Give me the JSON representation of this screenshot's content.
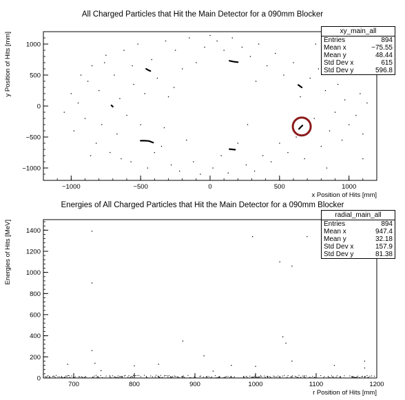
{
  "chart_data": [
    {
      "type": "scatter",
      "title": "All Charged Particles that Hit the Main Detector for a 090mm Blocker",
      "xlabel": "x Position of Hits [mm]",
      "ylabel": "y Position of Hits [mm]",
      "xlim": [
        -1200,
        1200
      ],
      "ylim": [
        -1200,
        1200
      ],
      "x_ticks": [
        -1000,
        -500,
        0,
        500,
        1000
      ],
      "y_ticks": [
        -1000,
        -500,
        0,
        500,
        1000
      ],
      "stats": {
        "name": "xy_main_all",
        "rows": [
          {
            "label": "Entries",
            "value": "894"
          },
          {
            "label": "Mean x",
            "value": "−75.55"
          },
          {
            "label": "Mean y",
            "value": "48.44"
          },
          {
            "label": "Std Dev x",
            "value": "615"
          },
          {
            "label": "Std Dev y",
            "value": "596.8"
          }
        ]
      },
      "clusters": [
        {
          "x": [
            -460,
            -450,
            -440,
            -430
          ],
          "y": [
            600,
            585,
            575,
            565
          ]
        },
        {
          "x": [
            140,
            160,
            180,
            200
          ],
          "y": [
            730,
            720,
            712,
            708
          ]
        },
        {
          "x": [
            635,
            648,
            660
          ],
          "y": [
            340,
            320,
            300
          ]
        },
        {
          "x": [
            -710,
            -705,
            -700
          ],
          "y": [
            10,
            0,
            -10
          ]
        },
        {
          "x": [
            -500,
            -470,
            -440,
            -410
          ],
          "y": [
            -560,
            -560,
            -565,
            -590
          ]
        },
        {
          "x": [
            140,
            160,
            180
          ],
          "y": [
            -695,
            -700,
            -705
          ]
        },
        {
          "x": [
            640,
            655,
            665
          ],
          "y": [
            -370,
            -335,
            -315
          ]
        }
      ],
      "points": [
        {
          "x": -1000,
          "y": 200
        },
        {
          "x": -950,
          "y": 50
        },
        {
          "x": -900,
          "y": -200
        },
        {
          "x": -880,
          "y": 400
        },
        {
          "x": -850,
          "y": 650
        },
        {
          "x": -820,
          "y": -600
        },
        {
          "x": -800,
          "y": 250
        },
        {
          "x": -780,
          "y": -300
        },
        {
          "x": -750,
          "y": 820
        },
        {
          "x": -720,
          "y": -750
        },
        {
          "x": -690,
          "y": 500
        },
        {
          "x": -670,
          "y": -450
        },
        {
          "x": -650,
          "y": 120
        },
        {
          "x": -620,
          "y": 900
        },
        {
          "x": -600,
          "y": -150
        },
        {
          "x": -570,
          "y": -900
        },
        {
          "x": -550,
          "y": 350
        },
        {
          "x": -520,
          "y": 1000
        },
        {
          "x": -500,
          "y": -300
        },
        {
          "x": -470,
          "y": 200
        },
        {
          "x": -450,
          "y": -1000
        },
        {
          "x": -420,
          "y": 750
        },
        {
          "x": -400,
          "y": -750
        },
        {
          "x": -380,
          "y": 450
        },
        {
          "x": -350,
          "y": -650
        },
        {
          "x": -320,
          "y": 1050
        },
        {
          "x": -300,
          "y": 150
        },
        {
          "x": -280,
          "y": -950
        },
        {
          "x": -250,
          "y": 900
        },
        {
          "x": -220,
          "y": -1050
        },
        {
          "x": -200,
          "y": 600
        },
        {
          "x": -170,
          "y": -550
        },
        {
          "x": -150,
          "y": 1100
        },
        {
          "x": -120,
          "y": -900
        },
        {
          "x": -100,
          "y": 700
        },
        {
          "x": -70,
          "y": -1100
        },
        {
          "x": -40,
          "y": 950
        },
        {
          "x": 0,
          "y": 1140
        },
        {
          "x": 20,
          "y": -1000
        },
        {
          "x": 50,
          "y": 1050
        },
        {
          "x": 80,
          "y": -800
        },
        {
          "x": 100,
          "y": 900
        },
        {
          "x": 130,
          "y": -1080
        },
        {
          "x": 160,
          "y": 1100
        },
        {
          "x": 200,
          "y": -600
        },
        {
          "x": 230,
          "y": 950
        },
        {
          "x": 260,
          "y": -950
        },
        {
          "x": 290,
          "y": 800
        },
        {
          "x": 320,
          "y": -1050
        },
        {
          "x": 350,
          "y": 1000
        },
        {
          "x": 380,
          "y": -800
        },
        {
          "x": 410,
          "y": 650
        },
        {
          "x": 440,
          "y": -900
        },
        {
          "x": 470,
          "y": 850
        },
        {
          "x": 500,
          "y": -600
        },
        {
          "x": 530,
          "y": 500
        },
        {
          "x": 560,
          "y": -750
        },
        {
          "x": 600,
          "y": 700
        },
        {
          "x": 620,
          "y": -500
        },
        {
          "x": 650,
          "y": 150
        },
        {
          "x": 680,
          "y": -850
        },
        {
          "x": 720,
          "y": 450
        },
        {
          "x": 750,
          "y": -200
        },
        {
          "x": 780,
          "y": 600
        },
        {
          "x": 800,
          "y": -650
        },
        {
          "x": 830,
          "y": 250
        },
        {
          "x": 860,
          "y": -400
        },
        {
          "x": 880,
          "y": 800
        },
        {
          "x": 900,
          "y": -100
        },
        {
          "x": 920,
          "y": 350
        },
        {
          "x": 950,
          "y": -550
        },
        {
          "x": 970,
          "y": 100
        },
        {
          "x": 1000,
          "y": -300
        },
        {
          "x": 1020,
          "y": 550
        },
        {
          "x": 1050,
          "y": -150
        },
        {
          "x": 1080,
          "y": 200
        },
        {
          "x": 1100,
          "y": -450
        },
        {
          "x": 1130,
          "y": 50
        },
        {
          "x": -1050,
          "y": -100
        },
        {
          "x": -980,
          "y": -400
        },
        {
          "x": -930,
          "y": 500
        },
        {
          "x": -860,
          "y": -800
        },
        {
          "x": -760,
          "y": 700
        },
        {
          "x": -640,
          "y": -850
        },
        {
          "x": -560,
          "y": 650
        },
        {
          "x": -330,
          "y": -350
        },
        {
          "x": -260,
          "y": 300
        },
        {
          "x": 270,
          "y": -300
        },
        {
          "x": 330,
          "y": 400
        },
        {
          "x": 760,
          "y": 1000
        },
        {
          "x": 840,
          "y": -1000
        },
        {
          "x": 1060,
          "y": 900
        },
        {
          "x": 1100,
          "y": -850
        }
      ],
      "annotation": {
        "type": "circle",
        "x": 660,
        "y": -330,
        "color": "#8B1A1A"
      }
    },
    {
      "type": "scatter",
      "title": "Energies of All Charged Particles that Hit the Main Detector for a 090mm Blocker",
      "xlabel": "r Position of Hits [mm]",
      "ylabel": "Energies of Hits [MeV]",
      "xlim": [
        650,
        1200
      ],
      "ylim": [
        0,
        1500
      ],
      "x_ticks": [
        700,
        800,
        900,
        1000,
        1100,
        1200
      ],
      "y_ticks": [
        0,
        200,
        400,
        600,
        800,
        1000,
        1200,
        1400
      ],
      "stats": {
        "name": "radial_main_all",
        "rows": [
          {
            "label": "Entries",
            "value": "894"
          },
          {
            "label": "Mean x",
            "value": "947.4"
          },
          {
            "label": "Mean y",
            "value": "32.18"
          },
          {
            "label": "Std Dev x",
            "value": "157.9"
          },
          {
            "label": "Std Dev y",
            "value": "81.38"
          }
        ]
      },
      "points": [
        {
          "x": 730,
          "y": 1390
        },
        {
          "x": 995,
          "y": 1340
        },
        {
          "x": 1040,
          "y": 1100
        },
        {
          "x": 1085,
          "y": 1340
        },
        {
          "x": 1060,
          "y": 1060
        },
        {
          "x": 730,
          "y": 900
        },
        {
          "x": 880,
          "y": 350
        },
        {
          "x": 1045,
          "y": 390
        },
        {
          "x": 1050,
          "y": 330
        },
        {
          "x": 1060,
          "y": 160
        },
        {
          "x": 730,
          "y": 260
        },
        {
          "x": 690,
          "y": 130
        },
        {
          "x": 735,
          "y": 140
        },
        {
          "x": 800,
          "y": 115
        },
        {
          "x": 840,
          "y": 130
        },
        {
          "x": 915,
          "y": 210
        },
        {
          "x": 960,
          "y": 120
        },
        {
          "x": 1000,
          "y": 110
        },
        {
          "x": 1130,
          "y": 120
        },
        {
          "x": 1180,
          "y": 95
        },
        {
          "x": 745,
          "y": 70
        },
        {
          "x": 930,
          "y": 65
        },
        {
          "x": 1180,
          "y": 160
        }
      ],
      "baseline_density": 0.55
    }
  ]
}
